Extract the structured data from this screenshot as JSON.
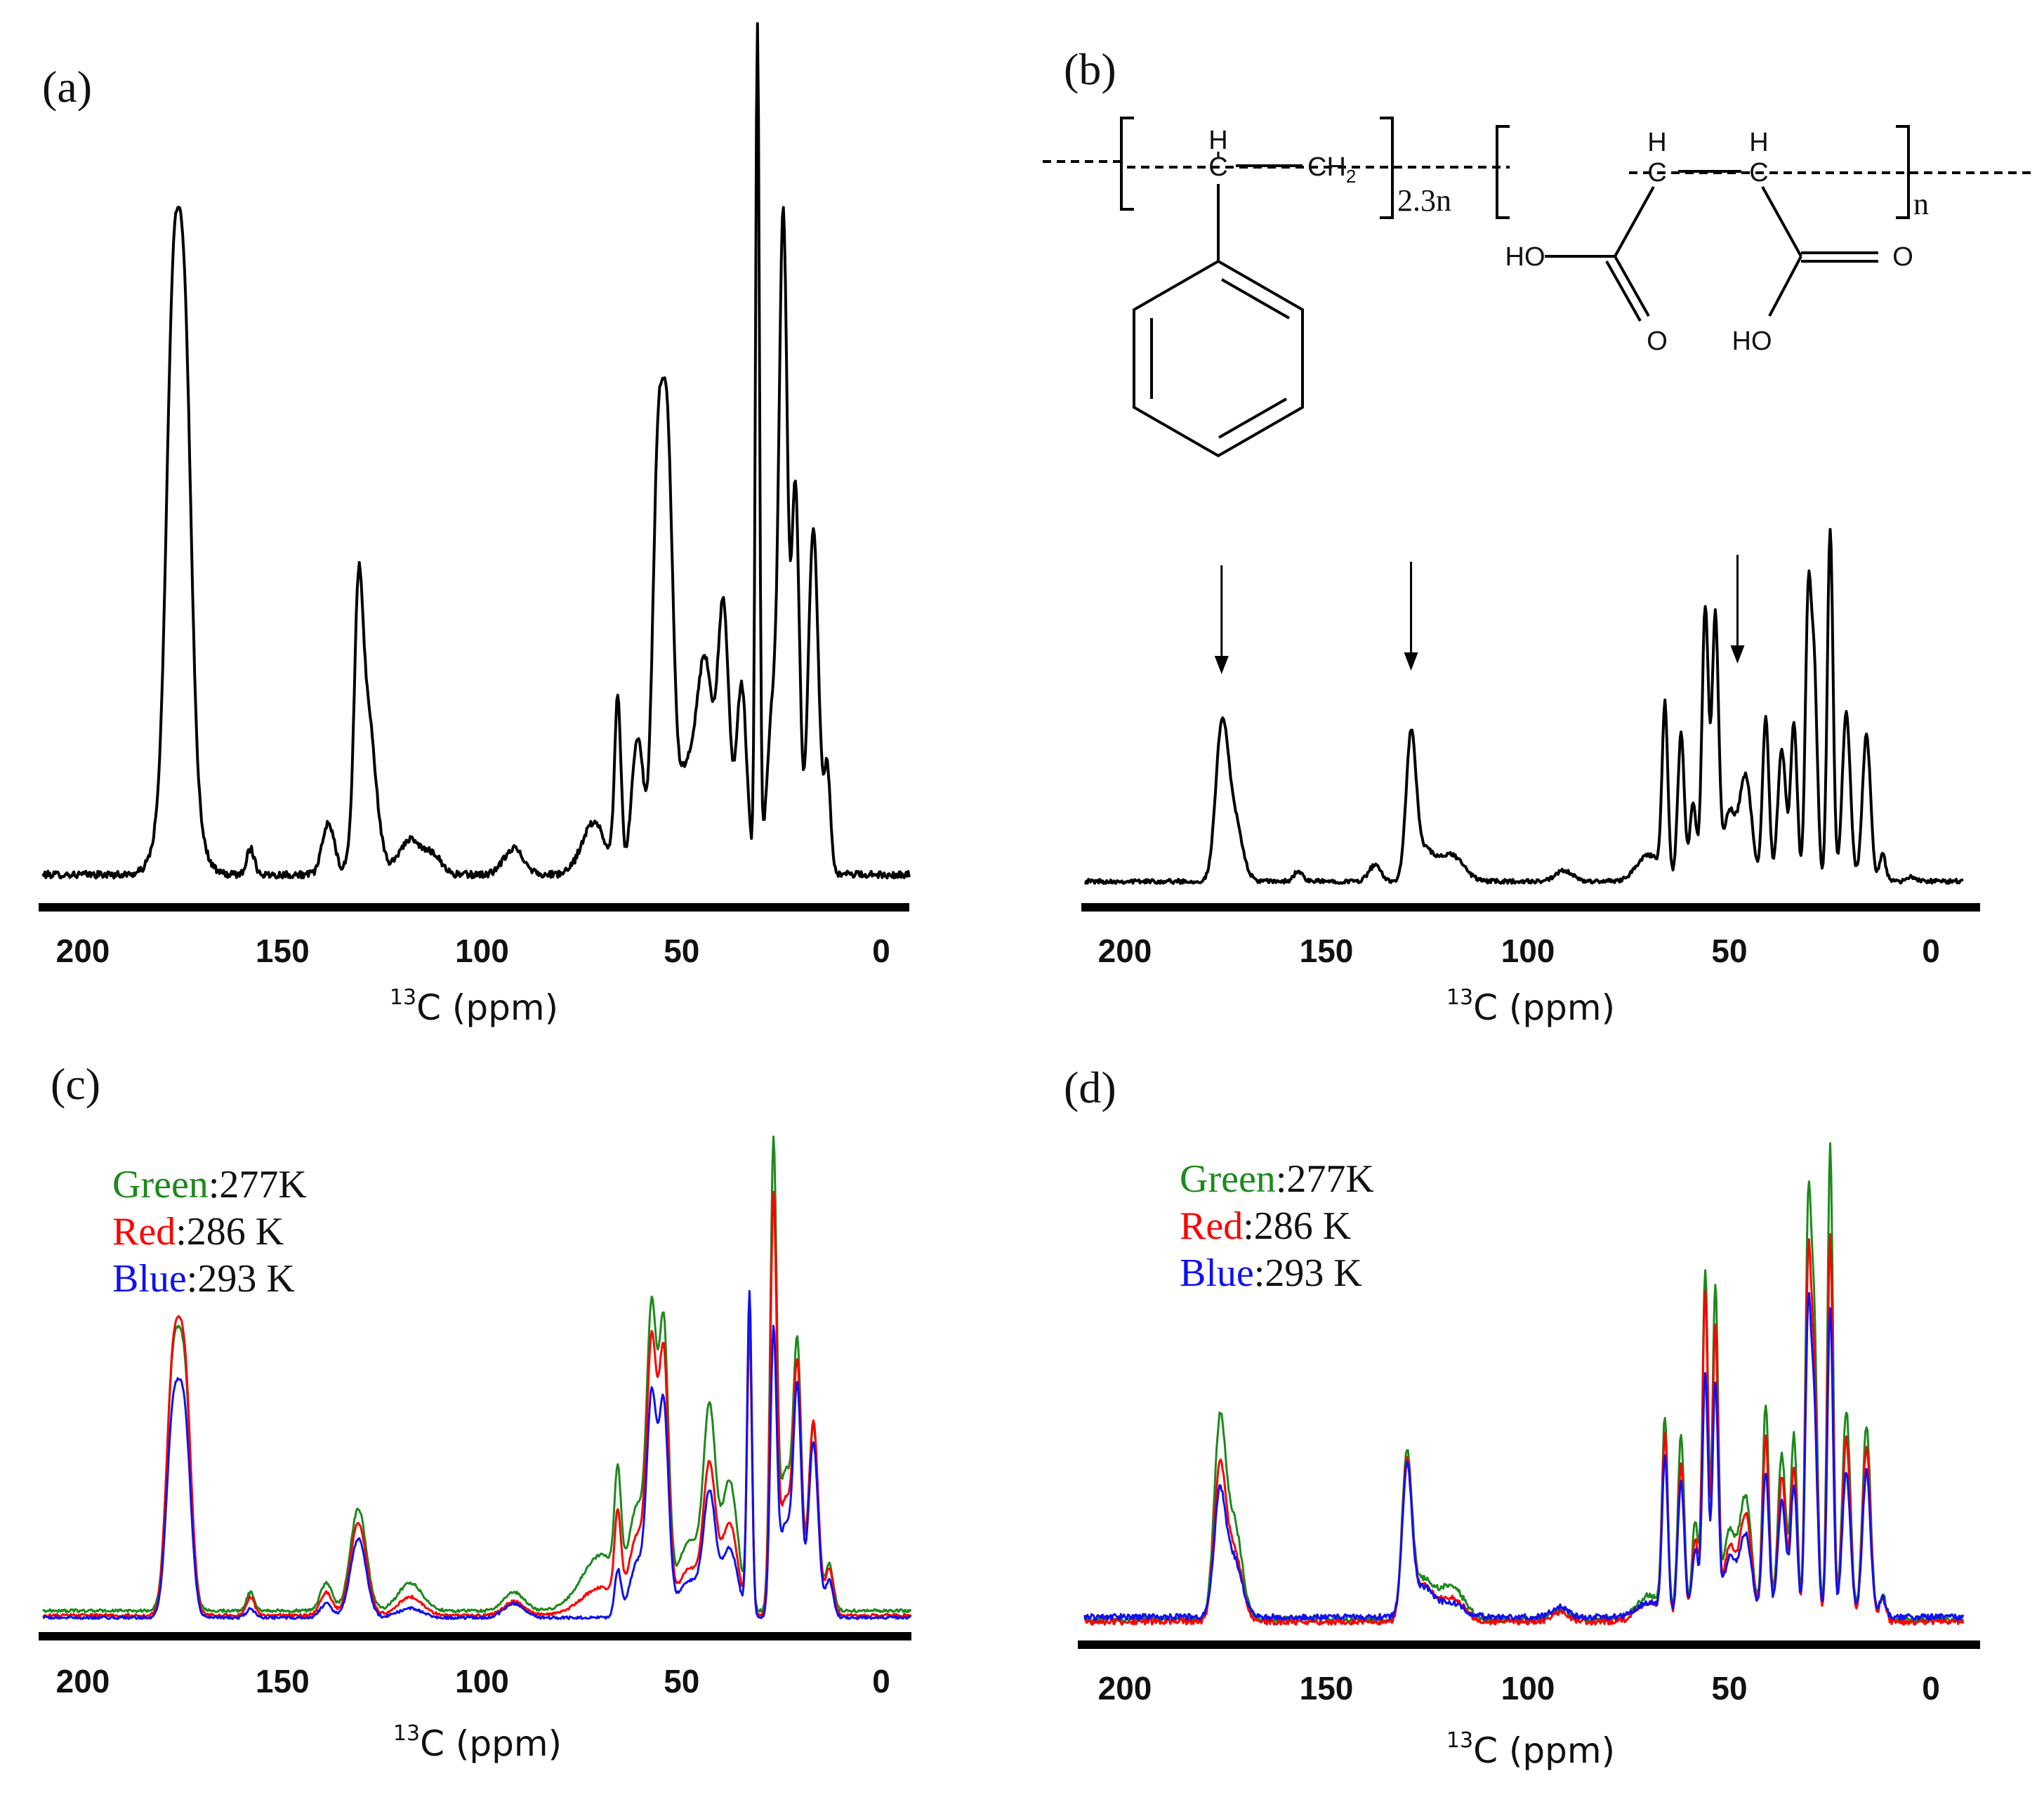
{
  "chart_data": [
    {
      "panel": "(a)",
      "type": "line",
      "xlabel_sup": "13",
      "xlabel": "C  (ppm)",
      "x_ticks": [
        200,
        150,
        100,
        50,
        0
      ],
      "xlim": [
        210,
        -8
      ],
      "ylim": [
        0,
        1
      ],
      "series": [
        {
          "name": "spectrum",
          "color": "#000000",
          "baseline": 0.02,
          "noise": 0.004,
          "peaks": [
            [
              177.5,
              0.45,
              1.6
            ],
            [
              174.5,
              0.44,
              1.6
            ],
            [
              176,
              0.2,
              3.5
            ],
            [
              158,
              0.03,
              1.0
            ],
            [
              138.5,
              0.06,
              1.5
            ],
            [
              131,
              0.22,
              1.0
            ],
            [
              129,
              0.2,
              2.2
            ],
            [
              118,
              0.04,
              3
            ],
            [
              112,
              0.02,
              2
            ],
            [
              92,
              0.03,
              2.5
            ],
            [
              72,
              0.06,
              3
            ],
            [
              66,
              0.2,
              0.8
            ],
            [
              61,
              0.16,
              1.5
            ],
            [
              56,
              0.45,
              1.3
            ],
            [
              53.5,
              0.43,
              1.3
            ],
            [
              49,
              0.12,
              3
            ],
            [
              44,
              0.22,
              2
            ],
            [
              39.5,
              0.3,
              1.4
            ],
            [
              35,
              0.22,
              1.3
            ],
            [
              31,
              0.98,
              0.5
            ],
            [
              27,
              0.2,
              1.5
            ],
            [
              24.5,
              0.72,
              1.0
            ],
            [
              21.5,
              0.45,
              1.0
            ],
            [
              17,
              0.4,
              1.3
            ],
            [
              13.5,
              0.12,
              0.8
            ]
          ]
        }
      ]
    },
    {
      "panel": "(b)",
      "type": "line",
      "xlabel_sup": "13",
      "xlabel": "C  (ppm)",
      "x_ticks": [
        200,
        150,
        100,
        50,
        0
      ],
      "xlim": [
        210,
        -8
      ],
      "ylim": [
        0,
        1
      ],
      "arrows_ppm": [
        176,
        129,
        48
      ],
      "series": [
        {
          "name": "spectrum",
          "color": "#000000",
          "baseline": 0.02,
          "noise": 0.004,
          "peaks": [
            [
              176,
              0.27,
              1.5
            ],
            [
              173,
              0.12,
              2
            ],
            [
              157,
              0.02,
              1
            ],
            [
              138,
              0.03,
              1.5
            ],
            [
              129,
              0.26,
              1.2
            ],
            [
              126,
              0.06,
              2.5
            ],
            [
              119,
              0.05,
              3
            ],
            [
              91,
              0.02,
              2
            ],
            [
              70,
              0.05,
              3
            ],
            [
              66,
              0.32,
              0.7
            ],
            [
              62,
              0.28,
              0.8
            ],
            [
              59,
              0.15,
              0.8
            ],
            [
              56,
              0.52,
              0.8
            ],
            [
              53.5,
              0.5,
              0.8
            ],
            [
              50,
              0.13,
              1.5
            ],
            [
              46,
              0.2,
              1.5
            ],
            [
              41,
              0.31,
              0.8
            ],
            [
              37,
              0.25,
              1
            ],
            [
              34,
              0.3,
              0.8
            ],
            [
              30.5,
              0.5,
              0.7
            ],
            [
              29,
              0.4,
              0.8
            ],
            [
              25,
              0.67,
              0.7
            ],
            [
              21,
              0.32,
              1
            ],
            [
              16,
              0.28,
              1.0
            ],
            [
              12,
              0.05,
              0.8
            ],
            [
              5,
              0.01,
              1
            ]
          ]
        }
      ],
      "structure": {
        "h_left": "H",
        "c_left": "C",
        "ch2": "CH",
        "ch2_sub": "2",
        "repeat_1": "2.3n",
        "h_mid_1": "H",
        "c_mid_1": "C",
        "h_mid_2": "H",
        "c_mid_2": "C",
        "repeat_2": "n",
        "ho_left": "HO",
        "o_left": "O",
        "ho_right": "HO",
        "o_right": "O"
      }
    },
    {
      "panel": "(c)",
      "type": "line",
      "xlabel_sup": "13",
      "xlabel": "C  (ppm)",
      "x_ticks": [
        200,
        150,
        100,
        50,
        0
      ],
      "xlim": [
        210,
        -8
      ],
      "ylim": [
        0,
        1
      ],
      "legend": [
        {
          "color_word": "Green",
          "temp": ":277K",
          "color": "#1c8a1c"
        },
        {
          "color_word": "Red",
          "temp": ":286 K",
          "color": "#ff0000"
        },
        {
          "color_word": "Blue",
          "temp": ":293 K",
          "color": "#1010f0"
        }
      ],
      "series": [
        {
          "name": "Green: 277K",
          "color": "#1c8a1c",
          "baseline": 0.04,
          "noise": 0.003,
          "peaks": [
            [
              177.5,
              0.48,
              1.6
            ],
            [
              174.5,
              0.47,
              1.6
            ],
            [
              158,
              0.04,
              1
            ],
            [
              139,
              0.06,
              1.5
            ],
            [
              131,
              0.22,
              2
            ],
            [
              118,
              0.06,
              3
            ],
            [
              92,
              0.04,
              2.5
            ],
            [
              70,
              0.12,
              5
            ],
            [
              66,
              0.22,
              0.8
            ],
            [
              61,
              0.2,
              2
            ],
            [
              57.5,
              0.6,
              1.2
            ],
            [
              54.5,
              0.6,
              1.2
            ],
            [
              48,
              0.15,
              3
            ],
            [
              43,
              0.4,
              1.5
            ],
            [
              38,
              0.28,
              2
            ],
            [
              33,
              0.6,
              0.6
            ],
            [
              27,
              0.98,
              0.8
            ],
            [
              24,
              0.3,
              1.5
            ],
            [
              21,
              0.55,
              1
            ],
            [
              17,
              0.4,
              1.2
            ],
            [
              13,
              0.1,
              1
            ]
          ]
        },
        {
          "name": "Red: 286 K",
          "color": "#ff0000",
          "baseline": 0.03,
          "noise": 0.003,
          "peaks": [
            [
              177.5,
              0.5,
              1.6
            ],
            [
              174.5,
              0.5,
              1.6
            ],
            [
              158,
              0.04,
              1
            ],
            [
              139,
              0.05,
              1.5
            ],
            [
              131,
              0.2,
              2
            ],
            [
              118,
              0.04,
              3
            ],
            [
              92,
              0.03,
              2.5
            ],
            [
              70,
              0.06,
              5
            ],
            [
              66,
              0.18,
              0.8
            ],
            [
              61,
              0.16,
              2
            ],
            [
              57.5,
              0.55,
              1.2
            ],
            [
              54.5,
              0.55,
              1.2
            ],
            [
              48,
              0.1,
              3
            ],
            [
              43,
              0.3,
              1.5
            ],
            [
              38,
              0.2,
              2
            ],
            [
              33,
              0.63,
              0.6
            ],
            [
              27,
              0.88,
              0.8
            ],
            [
              24,
              0.25,
              1.5
            ],
            [
              21,
              0.52,
              1
            ],
            [
              17,
              0.42,
              1.2
            ],
            [
              13,
              0.1,
              1
            ]
          ]
        },
        {
          "name": "Blue: 293 K",
          "color": "#1010f0",
          "baseline": 0.025,
          "noise": 0.003,
          "peaks": [
            [
              177.5,
              0.4,
              1.6
            ],
            [
              174.5,
              0.4,
              1.6
            ],
            [
              158,
              0.02,
              1
            ],
            [
              139,
              0.03,
              1.5
            ],
            [
              131,
              0.17,
              2
            ],
            [
              118,
              0.02,
              3
            ],
            [
              92,
              0.03,
              2.5
            ],
            [
              66,
              0.1,
              0.8
            ],
            [
              61,
              0.12,
              2
            ],
            [
              57.5,
              0.45,
              1.2
            ],
            [
              54.5,
              0.45,
              1.2
            ],
            [
              48,
              0.08,
              3
            ],
            [
              43,
              0.25,
              1.5
            ],
            [
              38,
              0.15,
              2
            ],
            [
              33,
              0.7,
              0.6
            ],
            [
              27,
              0.6,
              0.8
            ],
            [
              24,
              0.2,
              1.5
            ],
            [
              21,
              0.48,
              1
            ],
            [
              17,
              0.38,
              1.2
            ],
            [
              13,
              0.08,
              1
            ]
          ]
        }
      ]
    },
    {
      "panel": "(d)",
      "type": "line",
      "xlabel_sup": "13",
      "xlabel": "C  (ppm)",
      "x_ticks": [
        200,
        150,
        100,
        50,
        0
      ],
      "xlim": [
        210,
        -8
      ],
      "ylim": [
        0,
        1
      ],
      "legend": [
        {
          "color_word": "Green",
          "temp": ":277K",
          "color": "#1c8a1c"
        },
        {
          "color_word": "Red",
          "temp": ":286 K",
          "color": "#ff0000"
        },
        {
          "color_word": "Blue",
          "temp": ":293 K",
          "color": "#1010f0"
        }
      ],
      "series": [
        {
          "name": "Green: 277K",
          "color": "#1c8a1c",
          "baseline": 0.035,
          "noise": 0.006,
          "peaks": [
            [
              176.5,
              0.38,
              1.4
            ],
            [
              173,
              0.2,
              2
            ],
            [
              130,
              0.33,
              1.2
            ],
            [
              126,
              0.08,
              2.5
            ],
            [
              119,
              0.07,
              3
            ],
            [
              92,
              0.02,
              2
            ],
            [
              70,
              0.05,
              3
            ],
            [
              66,
              0.4,
              0.7
            ],
            [
              62,
              0.38,
              0.8
            ],
            [
              58.5,
              0.2,
              0.8
            ],
            [
              56,
              0.72,
              0.7
            ],
            [
              53.5,
              0.68,
              0.7
            ],
            [
              50,
              0.18,
              1.5
            ],
            [
              46,
              0.25,
              1.5
            ],
            [
              41,
              0.44,
              0.8
            ],
            [
              37,
              0.34,
              1
            ],
            [
              34,
              0.38,
              0.8
            ],
            [
              30.5,
              0.78,
              0.7
            ],
            [
              29,
              0.6,
              0.8
            ],
            [
              25,
              0.98,
              0.7
            ],
            [
              21,
              0.43,
              1
            ],
            [
              16,
              0.4,
              1.0
            ],
            [
              12,
              0.05,
              0.8
            ]
          ]
        },
        {
          "name": "Red: 286 K",
          "color": "#ff0000",
          "baseline": 0.03,
          "noise": 0.006,
          "peaks": [
            [
              176.5,
              0.3,
              1.4
            ],
            [
              173,
              0.15,
              2
            ],
            [
              130,
              0.32,
              1.2
            ],
            [
              126,
              0.07,
              2.5
            ],
            [
              119,
              0.05,
              3
            ],
            [
              92,
              0.02,
              2
            ],
            [
              70,
              0.04,
              3
            ],
            [
              66,
              0.37,
              0.7
            ],
            [
              62,
              0.32,
              0.8
            ],
            [
              58.5,
              0.17,
              0.8
            ],
            [
              56,
              0.68,
              0.7
            ],
            [
              53.5,
              0.6,
              0.7
            ],
            [
              50,
              0.15,
              1.5
            ],
            [
              46,
              0.22,
              1.5
            ],
            [
              41,
              0.38,
              0.8
            ],
            [
              37,
              0.3,
              1
            ],
            [
              34,
              0.32,
              0.8
            ],
            [
              30.5,
              0.68,
              0.7
            ],
            [
              29,
              0.5,
              0.8
            ],
            [
              25,
              0.8,
              0.7
            ],
            [
              21,
              0.38,
              1
            ],
            [
              16,
              0.36,
              1.0
            ],
            [
              12,
              0.05,
              0.8
            ]
          ]
        },
        {
          "name": "Blue: 293 K",
          "color": "#1010f0",
          "baseline": 0.04,
          "noise": 0.006,
          "peaks": [
            [
              176.5,
              0.24,
              1.4
            ],
            [
              173,
              0.12,
              2
            ],
            [
              130,
              0.3,
              1.2
            ],
            [
              126,
              0.06,
              2.5
            ],
            [
              119,
              0.03,
              3
            ],
            [
              92,
              0.02,
              2
            ],
            [
              70,
              0.03,
              3
            ],
            [
              66,
              0.32,
              0.7
            ],
            [
              62,
              0.28,
              0.8
            ],
            [
              58.5,
              0.14,
              0.8
            ],
            [
              56,
              0.5,
              0.7
            ],
            [
              53.5,
              0.48,
              0.7
            ],
            [
              50,
              0.12,
              1.5
            ],
            [
              46,
              0.17,
              1.5
            ],
            [
              41,
              0.3,
              0.8
            ],
            [
              37,
              0.24,
              1
            ],
            [
              34,
              0.27,
              0.8
            ],
            [
              30.5,
              0.58,
              0.7
            ],
            [
              29,
              0.42,
              0.8
            ],
            [
              25,
              0.64,
              0.7
            ],
            [
              21,
              0.3,
              1
            ],
            [
              16,
              0.3,
              1.0
            ],
            [
              12,
              0.04,
              0.8
            ]
          ]
        }
      ]
    }
  ]
}
